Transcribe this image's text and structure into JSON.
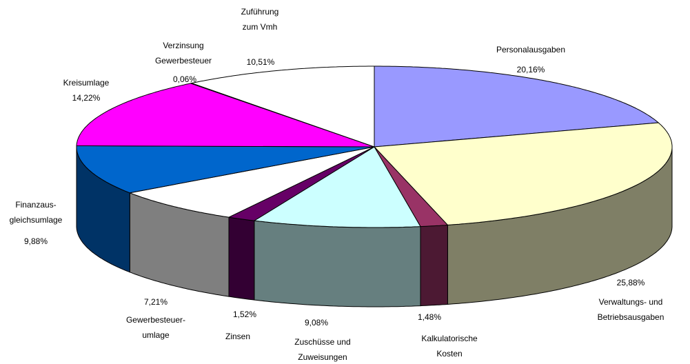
{
  "chart_data": {
    "type": "pie3d",
    "categories": [
      [
        "Personalausgaben"
      ],
      [
        "Verwaltungs- und",
        "Betriebsausgaben"
      ],
      [
        "Kalkulatorische",
        "Kosten"
      ],
      [
        "Zuschüsse und",
        "Zuweisungen"
      ],
      [
        "Zinsen"
      ],
      [
        "Gewerbesteuer-",
        "umlage"
      ],
      [
        "Finanzaus-",
        "gleichsumlage"
      ],
      [
        "Kreisumlage"
      ],
      [
        "Verzinsung",
        "Gewerbesteuer"
      ],
      [
        "Zuführung",
        "zum Vmh"
      ]
    ],
    "values": [
      20.16,
      25.88,
      1.48,
      9.08,
      1.52,
      7.21,
      9.88,
      14.22,
      0.06,
      10.51
    ],
    "value_labels": [
      "20,16%",
      "25,88%",
      "1,48%",
      "9,08%",
      "1,52%",
      "7,21%",
      "9,88%",
      "14,22%",
      "0,06%",
      "10,51%"
    ],
    "colors": [
      "#9999ff",
      "#ffffcc",
      "#993366",
      "#ccffff",
      "#660066",
      "#ffffff",
      "#0066cc",
      "#ff00ff",
      "#ccccff",
      "#ffffff"
    ]
  }
}
